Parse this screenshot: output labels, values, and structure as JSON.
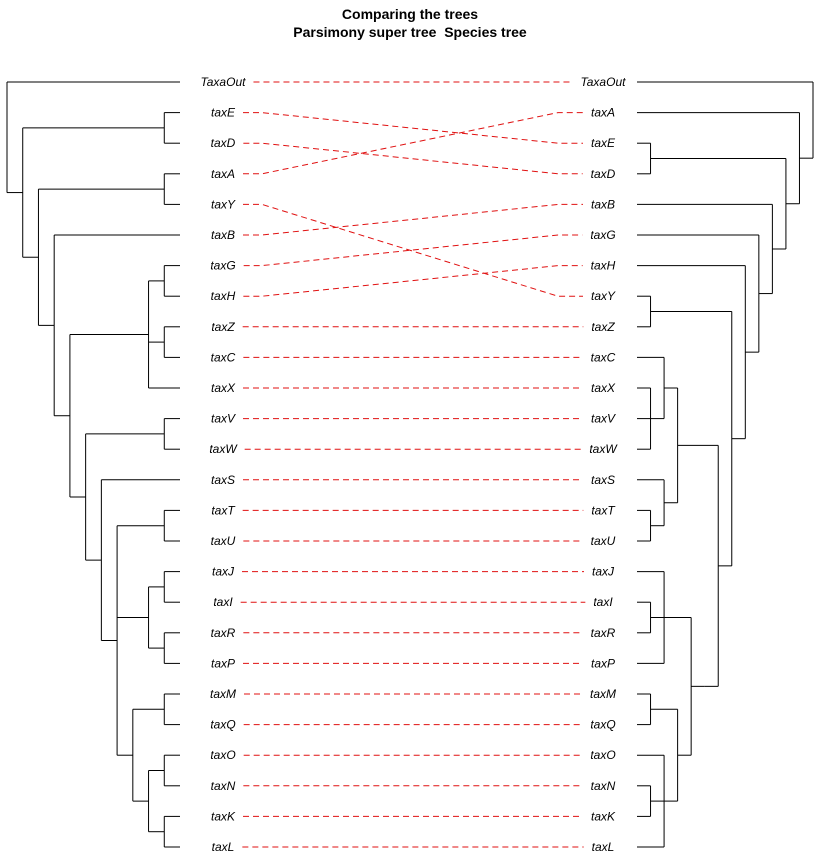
{
  "title": "Comparing the trees",
  "left_tree_label": "Parsimony super tree",
  "right_tree_label": "Species tree",
  "colors": {
    "branch": "#000000",
    "connector": "#e01010"
  },
  "left_tree": {
    "leaves": [
      "TaxaOut",
      "taxE",
      "taxD",
      "taxA",
      "taxY",
      "taxB",
      "taxG",
      "taxH",
      "taxZ",
      "taxC",
      "taxX",
      "taxV",
      "taxW",
      "taxS",
      "taxT",
      "taxU",
      "taxJ",
      "taxI",
      "taxR",
      "taxP",
      "taxM",
      "taxQ",
      "taxO",
      "taxN",
      "taxK",
      "taxL"
    ],
    "newick": "(TaxaOut,((taxE,taxD),((taxA,taxY),(taxB,(((taxG,taxH),(taxZ,taxC),taxX),((taxV,taxW),(taxS,((taxT,taxU),((taxJ,taxI),(taxR,taxP)),((taxM,taxQ),((taxO,taxN),(taxK,taxL))))))))))))"
  },
  "right_tree": {
    "leaves": [
      "TaxaOut",
      "taxA",
      "taxE",
      "taxD",
      "taxB",
      "taxG",
      "taxH",
      "taxY",
      "taxZ",
      "taxC",
      "taxX",
      "taxV",
      "taxW",
      "taxS",
      "taxT",
      "taxU",
      "taxJ",
      "taxI",
      "taxR",
      "taxP",
      "taxM",
      "taxQ",
      "taxO",
      "taxN",
      "taxK",
      "taxL"
    ],
    "newick": "(TaxaOut,(taxA,((taxE,taxD),(taxB,(taxG,(taxH,((taxY,taxZ),(((taxC,(taxX,taxV,taxW)),(taxS,(taxT,taxU))),(((taxJ,(taxI,taxR),taxP),((taxM,taxQ),(taxO,(taxN,taxK),taxL))))))))))))"
  }
}
